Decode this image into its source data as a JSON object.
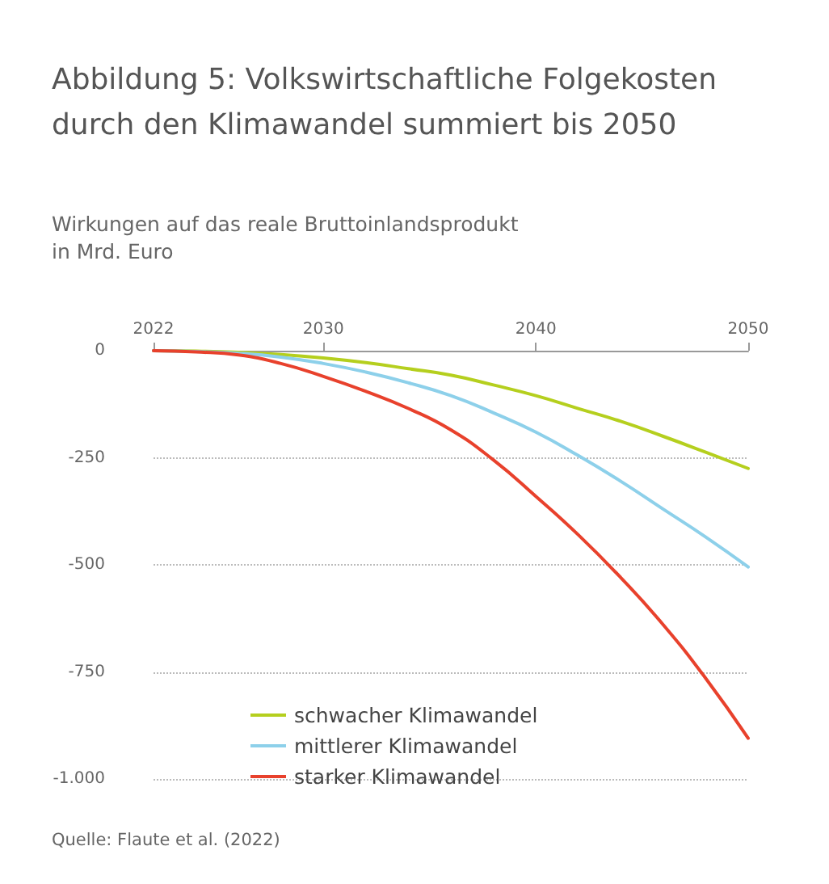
{
  "chart_data": {
    "type": "line",
    "title": "Abbildung 5: Volkswirtschaftliche Folgekosten durch den Klimawandel summiert bis 2050",
    "subtitle": "Wirkungen auf das reale Bruttoinlandsprodukt in Mrd. Euro",
    "x": [
      2022,
      2024,
      2026,
      2028,
      2030,
      2032,
      2034,
      2036,
      2038,
      2040,
      2042,
      2044,
      2046,
      2048,
      2050
    ],
    "series": [
      {
        "name": "schwacher Klimawandel",
        "color": "#b5cf1e",
        "values": [
          0,
          -1,
          -4,
          -9,
          -17,
          -28,
          -42,
          -57,
          -80,
          -105,
          -135,
          -165,
          -200,
          -237,
          -275
        ]
      },
      {
        "name": "mittlerer Klimawandel",
        "color": "#8dd0ea",
        "values": [
          0,
          -2,
          -6,
          -15,
          -30,
          -50,
          -75,
          -105,
          -145,
          -190,
          -245,
          -305,
          -370,
          -435,
          -505
        ]
      },
      {
        "name": "starker Klimawandel",
        "color": "#e8412c",
        "values": [
          0,
          -3,
          -10,
          -30,
          -60,
          -95,
          -135,
          -185,
          -255,
          -340,
          -430,
          -530,
          -640,
          -765,
          -905
        ]
      }
    ],
    "xlim": [
      2022,
      2050
    ],
    "xticks": [
      2022,
      2030,
      2040,
      2050
    ],
    "ylim": [
      -1000,
      0
    ],
    "yticks": [
      0,
      -250,
      -500,
      -750,
      {
        "value": -1000,
        "label": "-1.000"
      }
    ],
    "grid": "y",
    "legend": "bottom",
    "marker": "none",
    "line_style": "solid",
    "annotations": [
      "Quelle: Flaute et al. (2022)"
    ]
  }
}
